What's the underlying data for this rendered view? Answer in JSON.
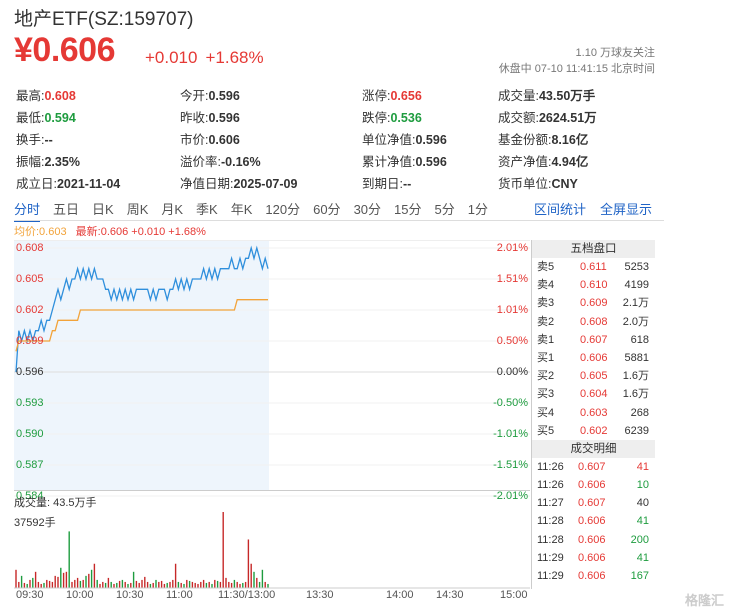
{
  "header": {
    "title": "地产ETF(SZ:159707)",
    "price": "¥0.606",
    "change": "+0.010",
    "change_pct": "+1.68%",
    "follow": "1.10 万球友关注",
    "status": "休盘中 07-10 11:41:15 北京时间"
  },
  "stats": [
    [
      {
        "label": "最高:",
        "value": "0.608",
        "color": "red"
      },
      {
        "label": "今开:",
        "value": "0.596",
        "color": ""
      },
      {
        "label": "涨停:",
        "value": "0.656",
        "color": "red"
      },
      {
        "label": "成交量:",
        "value": "43.50万手",
        "color": ""
      }
    ],
    [
      {
        "label": "最低:",
        "value": "0.594",
        "color": "green"
      },
      {
        "label": "昨收:",
        "value": "0.596",
        "color": ""
      },
      {
        "label": "跌停:",
        "value": "0.536",
        "color": "green"
      },
      {
        "label": "成交额:",
        "value": "2624.51万",
        "color": ""
      }
    ],
    [
      {
        "label": "换手:",
        "value": "--",
        "color": ""
      },
      {
        "label": "市价:",
        "value": "0.606",
        "color": ""
      },
      {
        "label": "单位净值:",
        "value": "0.596",
        "color": ""
      },
      {
        "label": "基金份额:",
        "value": "8.16亿",
        "color": ""
      }
    ],
    [
      {
        "label": "振幅:",
        "value": "2.35%",
        "color": ""
      },
      {
        "label": "溢价率:",
        "value": "-0.16%",
        "color": ""
      },
      {
        "label": "累计净值:",
        "value": "0.596",
        "color": ""
      },
      {
        "label": "资产净值:",
        "value": "4.94亿",
        "color": ""
      }
    ],
    [
      {
        "label": "成立日:",
        "value": "2021-11-04",
        "color": ""
      },
      {
        "label": "净值日期:",
        "value": "2025-07-09",
        "color": ""
      },
      {
        "label": "到期日:",
        "value": "--",
        "color": ""
      },
      {
        "label": "货币单位:",
        "value": "CNY",
        "color": ""
      }
    ]
  ],
  "tabs": [
    "分时",
    "五日",
    "日K",
    "周K",
    "月K",
    "季K",
    "年K",
    "120分",
    "60分",
    "30分",
    "15分",
    "5分",
    "1分"
  ],
  "tab_actions": [
    "区间统计",
    "全屏显示"
  ],
  "legend": {
    "avg": "均价:0.603",
    "latest": "最新:0.606 +0.010 +1.68%"
  },
  "y_left": [
    {
      "v": "0.608",
      "c": "red"
    },
    {
      "v": "0.605",
      "c": "red"
    },
    {
      "v": "0.602",
      "c": "red"
    },
    {
      "v": "0.599",
      "c": "red"
    },
    {
      "v": "0.596",
      "c": "dark"
    },
    {
      "v": "0.593",
      "c": "green"
    },
    {
      "v": "0.590",
      "c": "green"
    },
    {
      "v": "0.587",
      "c": "green"
    },
    {
      "v": "0.584",
      "c": "green"
    }
  ],
  "y_right": [
    {
      "v": "2.01%",
      "c": "red"
    },
    {
      "v": "1.51%",
      "c": "red"
    },
    {
      "v": "1.01%",
      "c": "red"
    },
    {
      "v": "0.50%",
      "c": "red"
    },
    {
      "v": "0.00%",
      "c": "dark"
    },
    {
      "v": "-0.50%",
      "c": "green"
    },
    {
      "v": "-1.01%",
      "c": "green"
    },
    {
      "v": "-1.51%",
      "c": "green"
    },
    {
      "v": "-2.01%",
      "c": "green"
    }
  ],
  "x_axis": [
    "09:30",
    "10:00",
    "10:30",
    "11:00",
    "11:30/13:00",
    "13:30",
    "14:00",
    "14:30",
    "15:00"
  ],
  "volume": {
    "label": "成交量: 43.5万手",
    "max_label": "37592手"
  },
  "orderbook": {
    "title": "五档盘口",
    "rows": [
      {
        "side": "卖5",
        "price": "0.611",
        "vol": "5253"
      },
      {
        "side": "卖4",
        "price": "0.610",
        "vol": "4199"
      },
      {
        "side": "卖3",
        "price": "0.609",
        "vol": "2.1万"
      },
      {
        "side": "卖2",
        "price": "0.608",
        "vol": "2.0万"
      },
      {
        "side": "卖1",
        "price": "0.607",
        "vol": "618"
      },
      {
        "side": "买1",
        "price": "0.606",
        "vol": "5881"
      },
      {
        "side": "买2",
        "price": "0.605",
        "vol": "1.6万"
      },
      {
        "side": "买3",
        "price": "0.604",
        "vol": "1.6万"
      },
      {
        "side": "买4",
        "price": "0.603",
        "vol": "268"
      },
      {
        "side": "买5",
        "price": "0.602",
        "vol": "6239"
      }
    ]
  },
  "trades": {
    "title": "成交明细",
    "rows": [
      {
        "time": "11:26",
        "price": "0.607",
        "vol": "41",
        "c": "red"
      },
      {
        "time": "11:26",
        "price": "0.606",
        "vol": "10",
        "c": "green"
      },
      {
        "time": "11:27",
        "price": "0.607",
        "vol": "40",
        "c": "dark"
      },
      {
        "time": "11:28",
        "price": "0.606",
        "vol": "41",
        "c": "green"
      },
      {
        "time": "11:28",
        "price": "0.606",
        "vol": "200",
        "c": "green"
      },
      {
        "time": "11:29",
        "price": "0.606",
        "vol": "41",
        "c": "green"
      },
      {
        "time": "11:29",
        "price": "0.606",
        "vol": "167",
        "c": "green"
      }
    ]
  },
  "watermark": "格隆汇",
  "chart_data": {
    "type": "line",
    "title": "",
    "ylim": [
      0.584,
      0.608
    ],
    "series": [
      {
        "name": "最新",
        "color": "#2f8fdc",
        "values": [
          0.596,
          0.6,
          0.599,
          0.6,
          0.599,
          0.6,
          0.599,
          0.6,
          0.6,
          0.601,
          0.6,
          0.601,
          0.601,
          0.602,
          0.603,
          0.604,
          0.603,
          0.604,
          0.605,
          0.604,
          0.605,
          0.605,
          0.606,
          0.605,
          0.606,
          0.605,
          0.606,
          0.605,
          0.606,
          0.605,
          0.605,
          0.605,
          0.604,
          0.604,
          0.603,
          0.604,
          0.603,
          0.604,
          0.603,
          0.604,
          0.603,
          0.604,
          0.603,
          0.604,
          0.604,
          0.604,
          0.604,
          0.604,
          0.603,
          0.604,
          0.603,
          0.604,
          0.604,
          0.604,
          0.603,
          0.604,
          0.604,
          0.605,
          0.604,
          0.605,
          0.604,
          0.605,
          0.604,
          0.605,
          0.605,
          0.605,
          0.605,
          0.606,
          0.605,
          0.606,
          0.605,
          0.606,
          0.605,
          0.606,
          0.606,
          0.606,
          0.606,
          0.607,
          0.606,
          0.606,
          0.607,
          0.606,
          0.607,
          0.607,
          0.608,
          0.607,
          0.608,
          0.607,
          0.606,
          0.607,
          0.606
        ]
      },
      {
        "name": "均价",
        "color": "#f2a33a",
        "values": [
          0.598,
          0.599,
          0.599,
          0.599,
          0.599,
          0.599,
          0.599,
          0.599,
          0.599,
          0.599,
          0.599,
          0.599,
          0.599,
          0.6,
          0.6,
          0.601,
          0.601,
          0.601,
          0.601,
          0.601,
          0.601,
          0.601,
          0.601,
          0.602,
          0.602,
          0.602,
          0.602,
          0.602,
          0.602,
          0.602,
          0.602,
          0.602,
          0.602,
          0.602,
          0.602,
          0.602,
          0.602,
          0.602,
          0.602,
          0.602,
          0.602,
          0.602,
          0.602,
          0.602,
          0.602,
          0.602,
          0.602,
          0.602,
          0.602,
          0.602,
          0.602,
          0.602,
          0.602,
          0.602,
          0.602,
          0.602,
          0.602,
          0.602,
          0.602,
          0.602,
          0.602,
          0.602,
          0.602,
          0.602,
          0.602,
          0.602,
          0.602,
          0.602,
          0.602,
          0.602,
          0.602,
          0.602,
          0.602,
          0.602,
          0.602,
          0.602,
          0.602,
          0.602,
          0.602,
          0.603,
          0.603,
          0.603,
          0.603,
          0.603,
          0.603,
          0.603,
          0.603,
          0.603,
          0.603,
          0.603,
          0.603
        ]
      }
    ],
    "volume": [
      9000,
      3000,
      6000,
      2500,
      2000,
      4000,
      5000,
      8000,
      3000,
      2000,
      2500,
      4000,
      3500,
      3000,
      6000,
      5500,
      10000,
      7500,
      8000,
      28000,
      3000,
      4000,
      5000,
      3500,
      4000,
      6000,
      7000,
      9000,
      12000,
      4000,
      2000,
      3000,
      2500,
      5000,
      3000,
      2000,
      2500,
      3500,
      4000,
      3000,
      2000,
      2500,
      8000,
      3500,
      2500,
      4000,
      5500,
      3000,
      2000,
      2500,
      4000,
      3000,
      3500,
      2000,
      2500,
      3000,
      4000,
      12000,
      3000,
      2500,
      2000,
      4000,
      3500,
      3000,
      2500,
      2000,
      3000,
      4000,
      2500,
      3000,
      2000,
      4000,
      3500,
      3000,
      37592,
      5000,
      3000,
      2500,
      4000,
      3000,
      2000,
      2500,
      3000,
      24000,
      12000,
      8000,
      5000,
      3000,
      9000,
      3000,
      2000
    ]
  }
}
